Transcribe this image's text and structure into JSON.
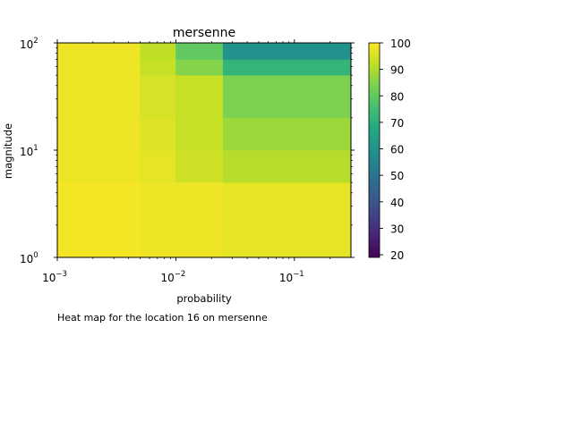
{
  "chart_data": {
    "type": "heatmap",
    "title": "mersenne",
    "xlabel": "probability",
    "ylabel": "magnitude",
    "caption": "Heat map for the location 16 on mersenne",
    "x_scale": "log",
    "y_scale": "log",
    "xlim": [
      0.001,
      0.3
    ],
    "ylim": [
      1,
      100
    ],
    "x_edges": [
      0.001,
      0.005,
      0.01,
      0.025,
      0.3
    ],
    "y_edges": [
      1,
      5,
      10,
      20,
      50,
      70,
      100
    ],
    "x_ticks": [
      {
        "value": 0.001,
        "base": "10",
        "exp": "−3"
      },
      {
        "value": 0.01,
        "base": "10",
        "exp": "−2"
      },
      {
        "value": 0.1,
        "base": "10",
        "exp": "−1"
      }
    ],
    "y_ticks": [
      {
        "value": 1,
        "base": "10",
        "exp": "0"
      },
      {
        "value": 10,
        "base": "10",
        "exp": "1"
      },
      {
        "value": 100,
        "base": "10",
        "exp": "2"
      }
    ],
    "values": [
      [
        99,
        98,
        98,
        97
      ],
      [
        98,
        97,
        94,
        91
      ],
      [
        98,
        96,
        93,
        88
      ],
      [
        98,
        95,
        93,
        84
      ],
      [
        98,
        93,
        85,
        72
      ],
      [
        98,
        92,
        80,
        60
      ]
    ],
    "colorbar": {
      "colormap": "viridis",
      "range": [
        19,
        100
      ],
      "ticks": [
        "20",
        "30",
        "40",
        "50",
        "60",
        "70",
        "80",
        "90",
        "100"
      ]
    }
  }
}
